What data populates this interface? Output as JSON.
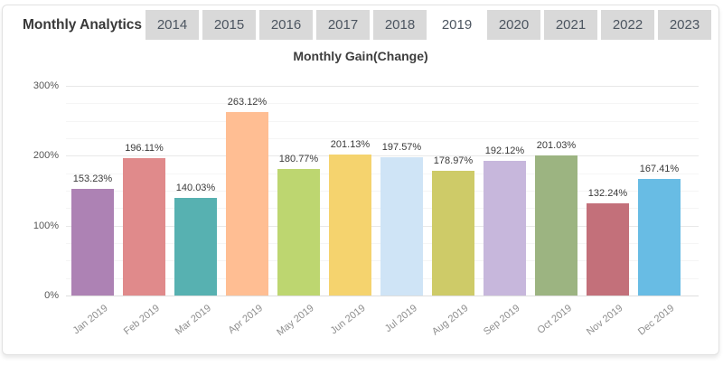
{
  "header": {
    "title": "Monthly Analytics",
    "tabs": [
      "2014",
      "2015",
      "2016",
      "2017",
      "2018",
      "2019",
      "2020",
      "2021",
      "2022",
      "2023"
    ],
    "active_tab": "2019"
  },
  "chart_data": {
    "type": "bar",
    "title": "Monthly Gain(Change)",
    "categories": [
      "Jan 2019",
      "Feb 2019",
      "Mar 2019",
      "Apr 2019",
      "May 2019",
      "Jun 2019",
      "Jul 2019",
      "Aug 2019",
      "Sep 2019",
      "Oct 2019",
      "Nov 2019",
      "Dec 2019"
    ],
    "values": [
      153.23,
      196.11,
      140.03,
      263.12,
      180.77,
      201.13,
      197.57,
      178.97,
      192.12,
      201.03,
      132.24,
      167.41
    ],
    "value_labels": [
      "153.23%",
      "196.11%",
      "140.03%",
      "263.12%",
      "180.77%",
      "201.13%",
      "197.57%",
      "178.97%",
      "192.12%",
      "201.03%",
      "132.24%",
      "167.41%"
    ],
    "bar_colors": [
      "#ad82b4",
      "#e08a8b",
      "#57b1b1",
      "#ffbe93",
      "#bdd670",
      "#f5d36e",
      "#cfe4f6",
      "#cecb68",
      "#c7b7dc",
      "#9cb481",
      "#c3707a",
      "#68bce4"
    ],
    "ytick_labels": [
      "0%",
      "100%",
      "200%",
      "300%"
    ],
    "ytick_values": [
      0,
      100,
      200,
      300
    ],
    "ylim": [
      0,
      310
    ],
    "grid": "on",
    "legend": "none"
  },
  "colors": {
    "tab_inactive_bg": "#d9d9d9",
    "tab_active_bg": "#ffffff",
    "tab_text": "#4c5560",
    "card_border": "#e2e2e2",
    "grid_major": "#e8e8e8",
    "grid_minor": "#f5f5f5",
    "axis_label": "#565656",
    "category_label": "#8e8e8e",
    "value_label": "#3a3a3a"
  }
}
